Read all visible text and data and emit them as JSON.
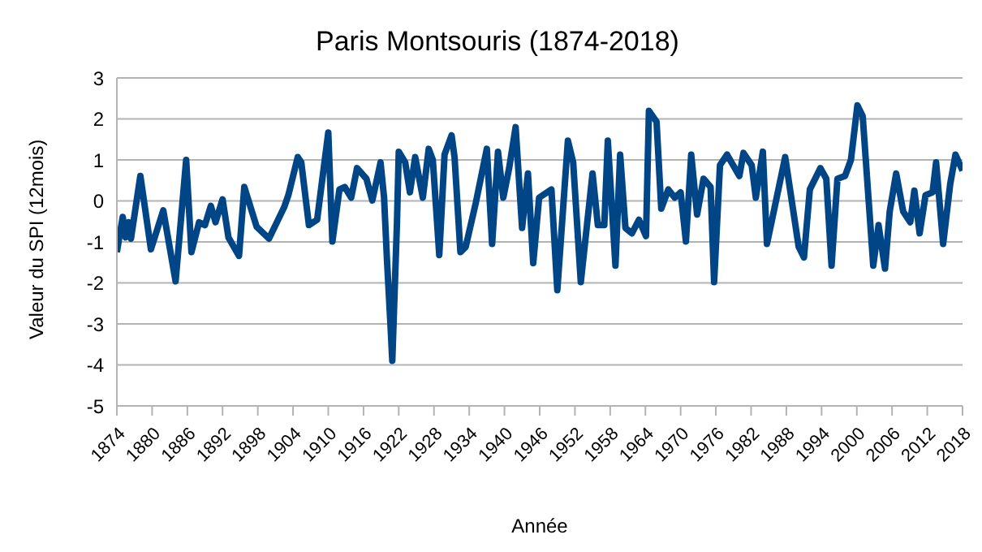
{
  "chart_data": {
    "type": "line",
    "title": "Paris Montsouris (1874-2018)",
    "xlabel": "Année",
    "ylabel": "Valeur du SPI (12mois)",
    "x": [
      1874,
      1875,
      1875.5,
      1876,
      1876.4,
      1878,
      1879.8,
      1881.9,
      1884,
      1885.8,
      1886.7,
      1888,
      1889,
      1890,
      1890.8,
      1892,
      1893,
      1894.8,
      1895.7,
      1897.8,
      1899.9,
      1902.5,
      1903.2,
      1904.8,
      1905.4,
      1906.7,
      1908.1,
      1910,
      1910.7,
      1911.9,
      1912.8,
      1913.9,
      1914.9,
      1916.5,
      1917.5,
      1918.9,
      1919.5,
      1920,
      1920.6,
      1920.9,
      1921.7,
      1922,
      1923.1,
      1923.9,
      1924.8,
      1926.1,
      1927.1,
      1927.8,
      1928.9,
      1929.8,
      1931,
      1931.5,
      1932.5,
      1933.4,
      1935.1,
      1937,
      1937.9,
      1938.9,
      1939.8,
      1940.8,
      1941.9,
      1943,
      1944,
      1944.9,
      1945.9,
      1948,
      1949,
      1950.8,
      1951.7,
      1953,
      1955,
      1955.9,
      1957,
      1957.6,
      1958.9,
      1959.7,
      1960.6,
      1961.7,
      1962.9,
      1964.1,
      1964.6,
      1965.9,
      1966.7,
      1967.9,
      1969,
      1970,
      1970.9,
      1971.8,
      1972.8,
      1973.9,
      1975.1,
      1975.7,
      1976.7,
      1977.9,
      1980,
      1980.7,
      1982.1,
      1982.8,
      1984,
      1984.7,
      1987.8,
      1990.1,
      1991,
      1992,
      1993.8,
      1994.8,
      1995.7,
      1996.7,
      1998,
      1999,
      2000.1,
      2001,
      2002.8,
      2003.7,
      2004.8,
      2005.6,
      2006.7,
      2007.9,
      2009.1,
      2009.8,
      2010.7,
      2011.7,
      2012.9,
      2013.5,
      2014.7,
      2015.9,
      2016.8,
      2018
    ],
    "series": [
      {
        "color": "#004586",
        "values": [
          -1.25,
          -0.39,
          -0.89,
          -0.52,
          -0.92,
          0.61,
          -1.18,
          -0.23,
          -1.96,
          1.0,
          -1.25,
          -0.52,
          -0.59,
          -0.12,
          -0.52,
          0.04,
          -0.89,
          -1.34,
          0.34,
          -0.63,
          -0.92,
          -0.15,
          0.14,
          1.07,
          0.94,
          -0.59,
          -0.46,
          1.67,
          -0.99,
          0.28,
          0.34,
          0.08,
          0.8,
          0.54,
          0.01,
          0.94,
          0.08,
          -1.45,
          -3.05,
          -3.9,
          -0.52,
          1.2,
          0.94,
          0.21,
          1.07,
          0.08,
          1.27,
          1.0,
          -1.32,
          1.13,
          1.6,
          1.07,
          -1.25,
          -1.12,
          -0.06,
          1.27,
          -1.05,
          1.2,
          0.08,
          0.8,
          1.8,
          -0.66,
          0.67,
          -1.52,
          0.08,
          0.28,
          -2.18,
          1.47,
          0.94,
          -1.98,
          0.67,
          -0.59,
          -0.59,
          1.47,
          -1.58,
          1.13,
          -0.66,
          -0.79,
          -0.46,
          -0.86,
          2.2,
          1.93,
          -0.19,
          0.28,
          0.08,
          0.21,
          -0.99,
          1.13,
          -0.33,
          0.54,
          0.34,
          -1.98,
          0.87,
          1.13,
          0.61,
          1.17,
          0.87,
          0.08,
          1.2,
          -1.05,
          1.07,
          -1.12,
          -1.38,
          0.28,
          0.8,
          0.54,
          -1.58,
          0.54,
          0.61,
          1.0,
          2.33,
          2.07,
          -1.58,
          -0.59,
          -1.65,
          -0.26,
          0.67,
          -0.26,
          -0.52,
          0.25,
          -0.79,
          0.14,
          0.21,
          0.94,
          -1.05,
          0.41,
          1.13,
          0.74
        ]
      }
    ],
    "xlim": [
      1874,
      2018
    ],
    "xticks": [
      1874,
      1880,
      1886,
      1892,
      1898,
      1904,
      1910,
      1916,
      1922,
      1928,
      1934,
      1940,
      1946,
      1952,
      1958,
      1964,
      1970,
      1976,
      1982,
      1988,
      1994,
      2000,
      2006,
      2012,
      2018
    ],
    "ylim": [
      -5,
      3
    ],
    "yticks": [
      -5,
      -4,
      -3,
      -2,
      -1,
      0,
      1,
      2,
      3
    ],
    "grid": "y",
    "legend": false,
    "marker": "none",
    "line_style": "solid"
  }
}
